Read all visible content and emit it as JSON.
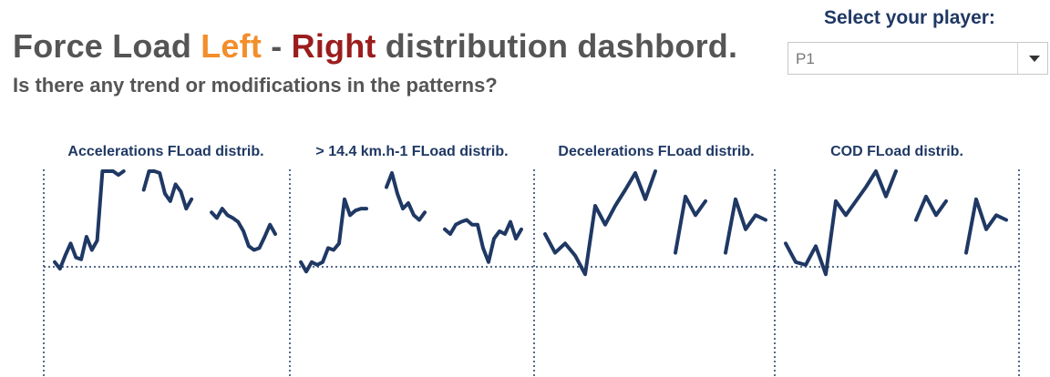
{
  "header": {
    "title_part1": "Force Load ",
    "title_left": "Left",
    "title_sep": " - ",
    "title_right": "Right",
    "title_part2": " distribution dashbord.",
    "subtitle": "Is there any trend or modifications in the patterns?",
    "colors": {
      "text": "#555555",
      "left": "#f28e2b",
      "right": "#9b1d1d"
    }
  },
  "player_select": {
    "label": "Select your player:",
    "value": "P1",
    "icon": "chevron-down-icon"
  },
  "chart_data": {
    "type": "line",
    "line_color": "#1f3864",
    "reference_line": {
      "y": 0,
      "style": "dotted"
    },
    "y_range": [
      -1,
      1.8
    ],
    "grid": false,
    "panels": [
      {
        "title": "Accelerations FLoad distrib.",
        "segments": [
          [
            0.05,
            -0.02,
            0.12,
            0.25,
            0.1,
            0.08,
            0.32,
            0.18,
            0.28,
            1.2,
            1.25,
            1.08,
            0.98,
            1.12
          ],
          [
            0.82,
            1.15,
            1.05,
            1.0,
            0.78,
            0.7,
            0.88,
            0.8,
            0.62,
            0.72
          ],
          [
            0.58,
            0.52,
            0.62,
            0.55,
            0.52,
            0.48,
            0.38,
            0.22,
            0.18,
            0.2,
            0.32,
            0.45,
            0.35
          ]
        ]
      },
      {
        "title": "> 14.4 km.h-1  FLoad distrib.",
        "segments": [
          [
            0.05,
            -0.05,
            0.05,
            0.02,
            0.05,
            0.2,
            0.18,
            0.25,
            0.72,
            0.55,
            0.6,
            0.62,
            0.62
          ],
          [
            0.85,
            1.0,
            0.78,
            0.62,
            0.68,
            0.55,
            0.5,
            0.58
          ],
          [
            0.4,
            0.35,
            0.45,
            0.48,
            0.5,
            0.45,
            0.45,
            0.2,
            0.05,
            0.3,
            0.38,
            0.35,
            0.48,
            0.3,
            0.4
          ]
        ]
      },
      {
        "title": "Decelerations FLoad distrib.",
        "segments": [
          [
            0.35,
            0.15,
            0.25,
            0.12,
            -0.08,
            0.65,
            0.45,
            0.65,
            0.82,
            1.0,
            0.72,
            1.1
          ],
          [
            0.15,
            0.75,
            0.55,
            0.7
          ],
          [
            0.15,
            0.72,
            0.4,
            0.55,
            0.5
          ]
        ]
      },
      {
        "title": "COD FLoad distrib.",
        "segments": [
          [
            0.25,
            0.05,
            0.02,
            0.22,
            -0.08,
            0.7,
            0.55,
            0.7,
            0.85,
            1.05,
            0.75,
            1.15
          ],
          [
            0.5,
            0.75,
            0.55,
            0.7
          ],
          [
            0.15,
            0.72,
            0.4,
            0.55,
            0.5
          ]
        ]
      }
    ]
  }
}
